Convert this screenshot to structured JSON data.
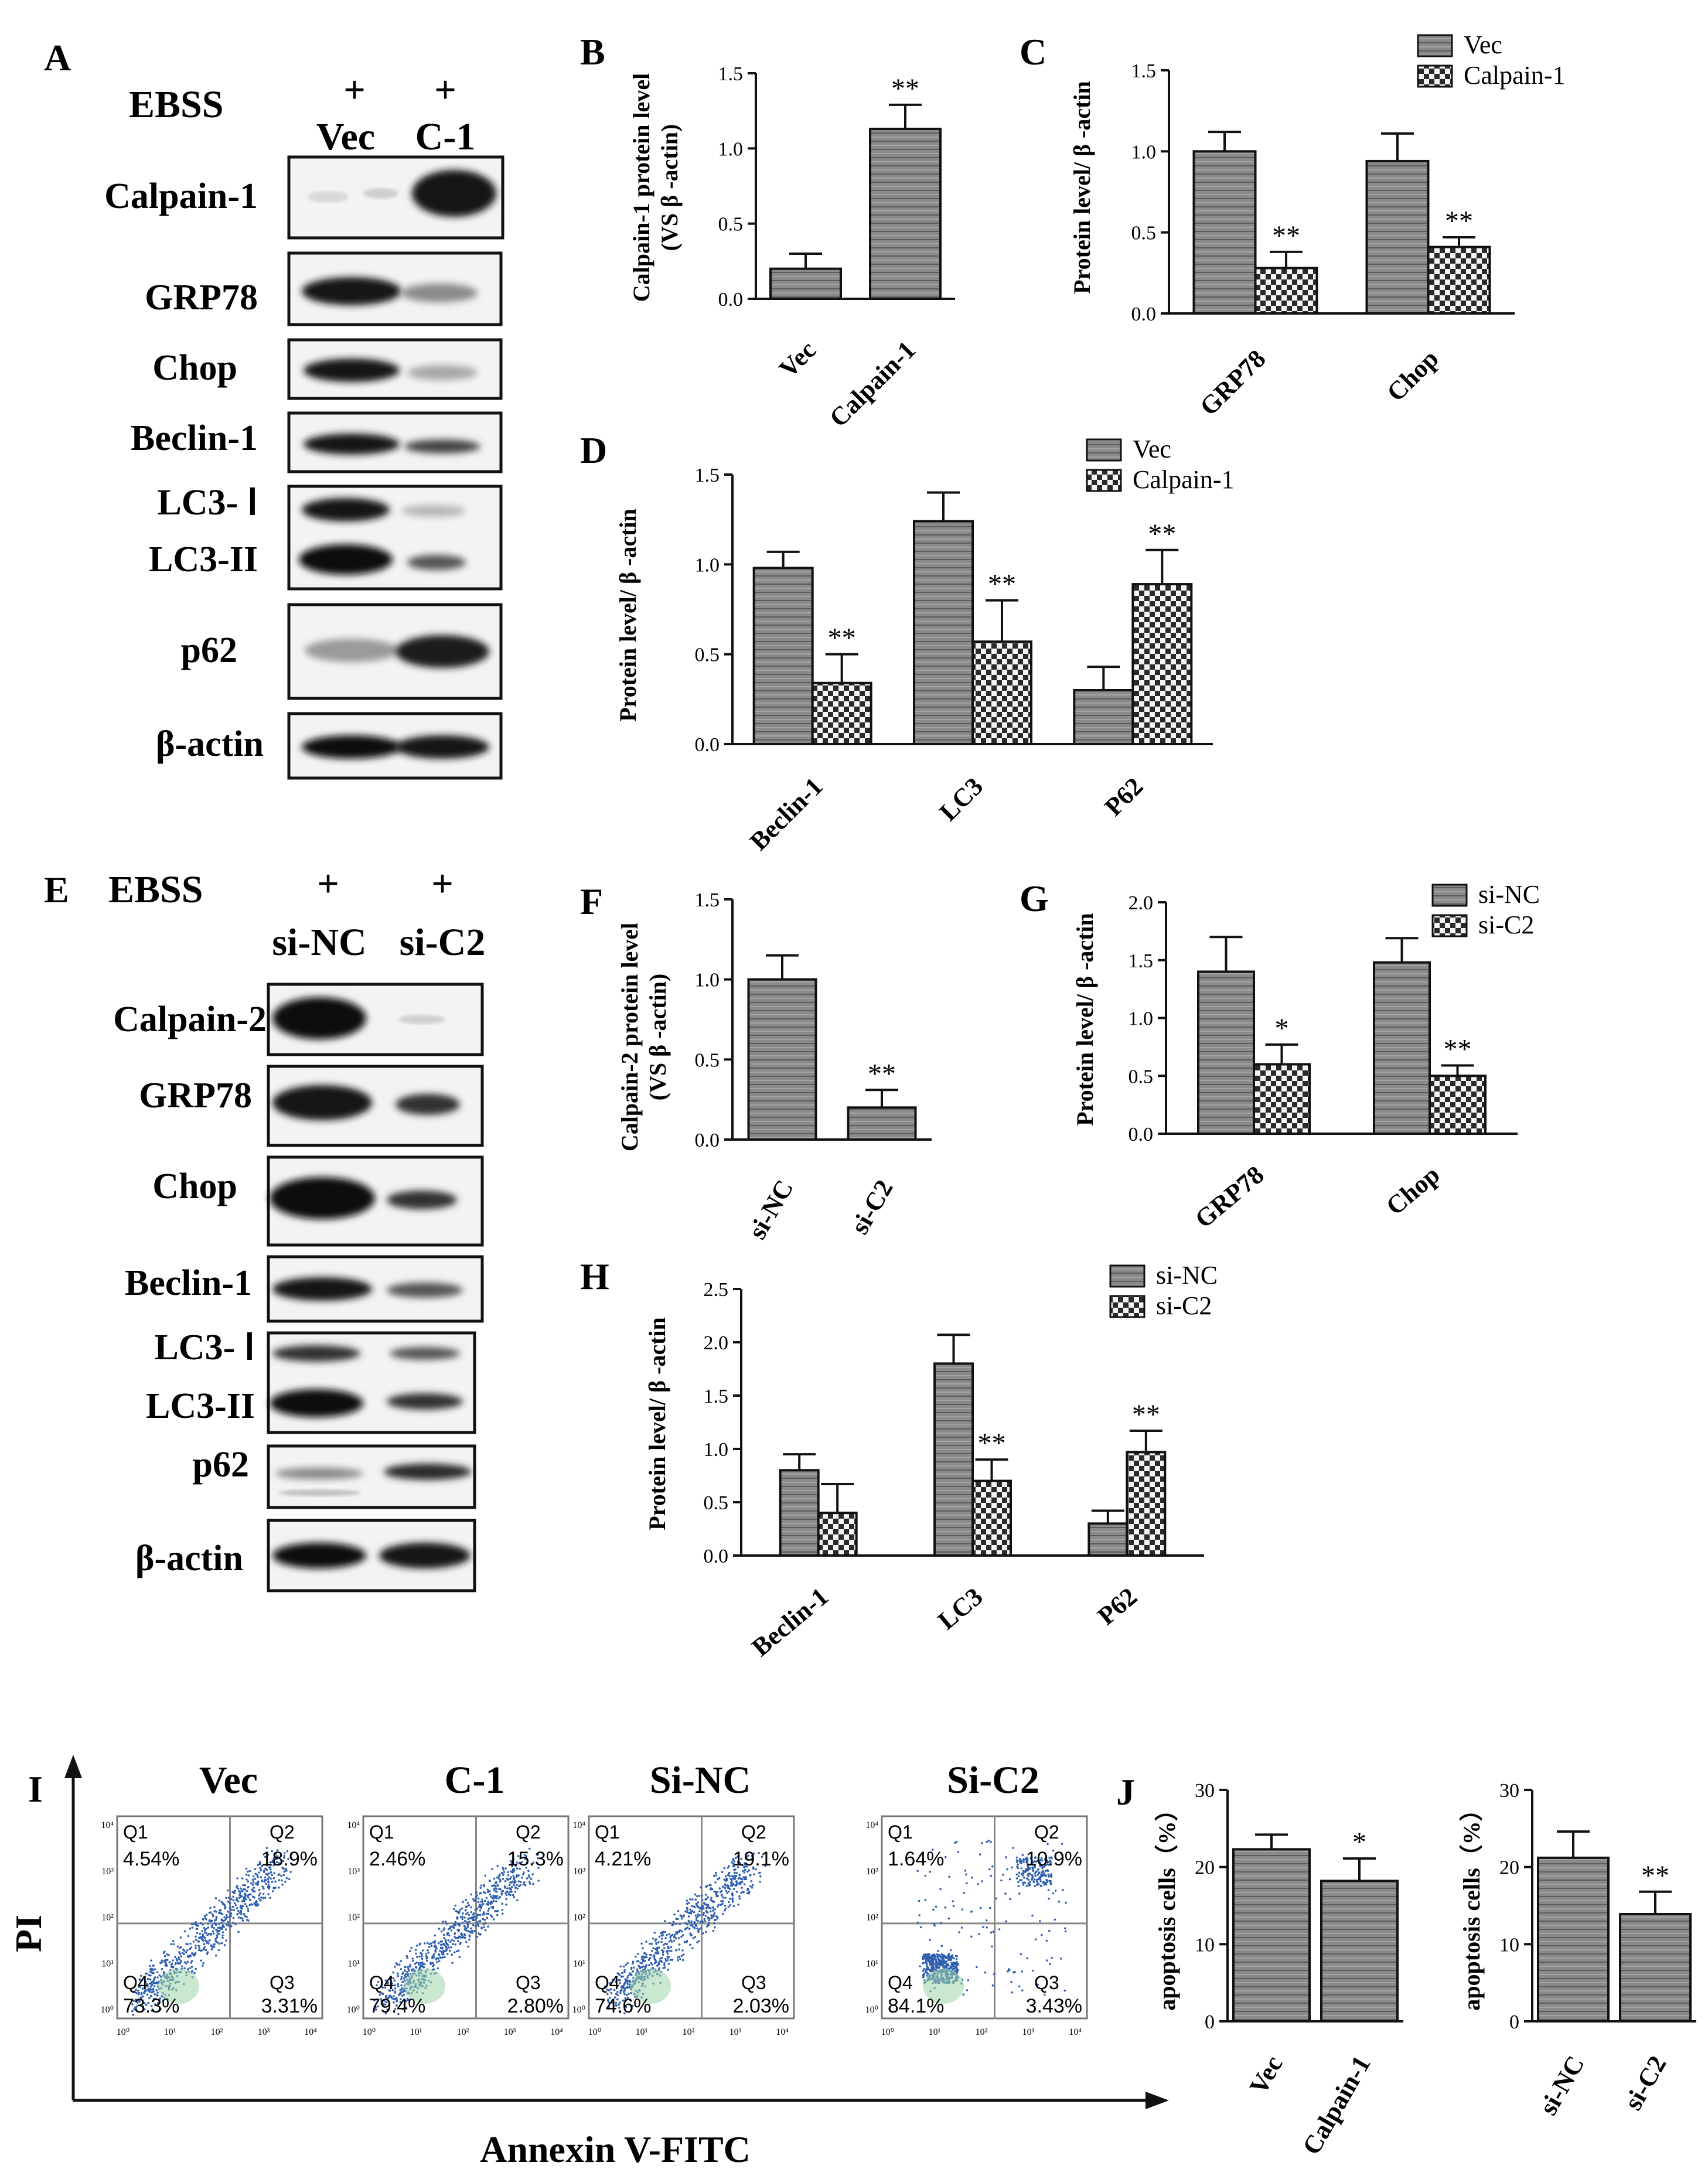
{
  "colors": {
    "vec_fill": "#8a8a8a",
    "cal_fill": "#f4f4f4",
    "ink": "#111111",
    "blot_bg": "#f2f2f2",
    "band": "#161616",
    "dots": "#2f5fb0"
  },
  "panels": {
    "A": {
      "letter": "A",
      "ebss_label": "EBSS",
      "plus": "+",
      "lanes": [
        "Vec",
        "C-1"
      ],
      "rows": [
        "Calpain-1",
        "GRP78",
        "Chop",
        "Beclin-1",
        "LC3- Ⅰ",
        "LC3-II",
        "p62",
        "β-actin"
      ]
    },
    "E": {
      "letter": "E",
      "ebss_label": "EBSS",
      "plus": "+",
      "lanes": [
        "si-NC",
        "si-C2"
      ],
      "rows": [
        "Calpain-2",
        "GRP78",
        "Chop",
        "Beclin-1",
        "LC3- Ⅰ",
        "LC3-II",
        "p62",
        "β-actin"
      ]
    },
    "I": {
      "letter": "I",
      "y_axis": "PI",
      "x_axis": "Annexin V-FITC"
    },
    "J": {
      "letter": "J"
    }
  },
  "chart_data": [
    {
      "id": "B",
      "letter": "B",
      "type": "bar",
      "categories": [
        "Vec",
        "Calpain-1"
      ],
      "series": [
        {
          "values": [
            0.2,
            1.13
          ],
          "errors": [
            0.1,
            0.16
          ],
          "sig": [
            "",
            "**"
          ]
        }
      ],
      "ylabel": "Calpain-1 protein level\n(VS β -actin)",
      "ylim": [
        0,
        1.5
      ],
      "yticks": [
        "0.0",
        "0.5",
        "1.0",
        "1.5"
      ],
      "grid": false
    },
    {
      "id": "C",
      "letter": "C",
      "type": "bar",
      "categories": [
        "GRP78",
        "Chop"
      ],
      "series": [
        {
          "name": "Vec",
          "values": [
            1.0,
            0.94
          ],
          "errors": [
            0.12,
            0.17
          ],
          "sig": [
            "",
            ""
          ]
        },
        {
          "name": "Calpain-1",
          "values": [
            0.28,
            0.41
          ],
          "errors": [
            0.1,
            0.06
          ],
          "sig": [
            "**",
            "**"
          ]
        }
      ],
      "ylabel": "Protein level/ β -actin",
      "ylim": [
        0,
        1.5
      ],
      "yticks": [
        "0.0",
        "0.5",
        "1.0",
        "1.5"
      ],
      "legend": "top-right",
      "grid": false
    },
    {
      "id": "D",
      "letter": "D",
      "type": "bar",
      "categories": [
        "Beclin-1",
        "LC3",
        "P62"
      ],
      "series": [
        {
          "name": "Vec",
          "values": [
            0.98,
            1.24,
            0.3
          ],
          "errors": [
            0.09,
            0.16,
            0.13
          ],
          "sig": [
            "",
            "",
            ""
          ]
        },
        {
          "name": "Calpain-1",
          "values": [
            0.34,
            0.57,
            0.89
          ],
          "errors": [
            0.16,
            0.23,
            0.19
          ],
          "sig": [
            "**",
            "**",
            "**"
          ]
        }
      ],
      "ylabel": "Protein level/ β -actin",
      "ylim": [
        0,
        1.5
      ],
      "yticks": [
        "0.0",
        "0.5",
        "1.0",
        "1.5"
      ],
      "legend": "top-right",
      "grid": false
    },
    {
      "id": "F",
      "letter": "F",
      "type": "bar",
      "categories": [
        "si-NC",
        "si-C2"
      ],
      "series": [
        {
          "values": [
            1.0,
            0.2
          ],
          "errors": [
            0.15,
            0.11
          ],
          "sig": [
            "",
            "**"
          ]
        }
      ],
      "ylabel": "Calpain-2 protein level\n(VS β -actin)",
      "ylim": [
        0,
        1.5
      ],
      "yticks": [
        "0.0",
        "0.5",
        "1.0",
        "1.5"
      ],
      "grid": false
    },
    {
      "id": "G",
      "letter": "G",
      "type": "bar",
      "categories": [
        "GRP78",
        "Chop"
      ],
      "series": [
        {
          "name": "si-NC",
          "values": [
            1.4,
            1.48
          ],
          "errors": [
            0.3,
            0.21
          ],
          "sig": [
            "",
            ""
          ]
        },
        {
          "name": "si-C2",
          "values": [
            0.6,
            0.5
          ],
          "errors": [
            0.17,
            0.09
          ],
          "sig": [
            "*",
            "**"
          ]
        }
      ],
      "ylabel": "Protein level/ β -actin",
      "ylim": [
        0,
        2.0
      ],
      "yticks": [
        "0.0",
        "0.5",
        "1.0",
        "1.5",
        "2.0"
      ],
      "legend": "top-right",
      "grid": false
    },
    {
      "id": "H",
      "letter": "H",
      "type": "bar",
      "categories": [
        "Beclin-1",
        "LC3",
        "P62"
      ],
      "series": [
        {
          "name": "si-NC",
          "values": [
            0.8,
            1.8,
            0.3
          ],
          "errors": [
            0.15,
            0.27,
            0.12
          ],
          "sig": [
            "",
            "",
            ""
          ]
        },
        {
          "name": "si-C2",
          "values": [
            0.4,
            0.7,
            0.97
          ],
          "errors": [
            0.27,
            0.2,
            0.2
          ],
          "sig": [
            "",
            "**",
            "**"
          ]
        }
      ],
      "ylabel": "Protein level/ β -actin",
      "ylim": [
        0,
        2.5
      ],
      "yticks": [
        "0.0",
        "0.5",
        "1.0",
        "1.5",
        "2.0",
        "2.5"
      ],
      "legend": "top-right",
      "grid": false
    },
    {
      "id": "I",
      "type": "scatter",
      "plots": [
        {
          "title": "Vec",
          "Q1": "4.54%",
          "Q2": "18.9%",
          "Q3": "3.31%",
          "Q4": "73.3%"
        },
        {
          "title": "C-1",
          "Q1": "2.46%",
          "Q2": "15.3%",
          "Q3": "2.80%",
          "Q4": "79.4%"
        },
        {
          "title": "Si-NC",
          "Q1": "4.21%",
          "Q2": "19.1%",
          "Q3": "2.03%",
          "Q4": "74.6%"
        },
        {
          "title": "Si-C2",
          "Q1": "1.64%",
          "Q2": "10.9%",
          "Q3": "3.43%",
          "Q4": "84.1%"
        }
      ],
      "quadrant_labels": [
        "Q1",
        "Q2",
        "Q3",
        "Q4"
      ],
      "xticks": [
        "10⁰",
        "10¹",
        "10²",
        "10³",
        "10⁴"
      ],
      "yticks": [
        "10⁰",
        "10¹",
        "10²",
        "10³",
        "10⁴"
      ],
      "xlabel": "Annexin V-FITC",
      "ylabel": "PI",
      "scale": "log"
    },
    {
      "id": "J1",
      "type": "bar",
      "categories": [
        "Vec",
        "Calpain-1"
      ],
      "series": [
        {
          "values": [
            22.3,
            18.2
          ],
          "errors": [
            1.9,
            2.9
          ],
          "sig": [
            "",
            "*"
          ]
        }
      ],
      "ylabel": "apoptosis cells（%）",
      "ylim": [
        0,
        30
      ],
      "yticks": [
        "0",
        "10",
        "20",
        "30"
      ],
      "grid": false
    },
    {
      "id": "J2",
      "type": "bar",
      "categories": [
        "si-NC",
        "si-C2"
      ],
      "series": [
        {
          "values": [
            21.2,
            13.9
          ],
          "errors": [
            3.4,
            2.9
          ],
          "sig": [
            "",
            "**"
          ]
        }
      ],
      "ylabel": "apoptosis cells（%）",
      "ylim": [
        0,
        30
      ],
      "yticks": [
        "0",
        "10",
        "20",
        "30"
      ],
      "grid": false
    }
  ]
}
